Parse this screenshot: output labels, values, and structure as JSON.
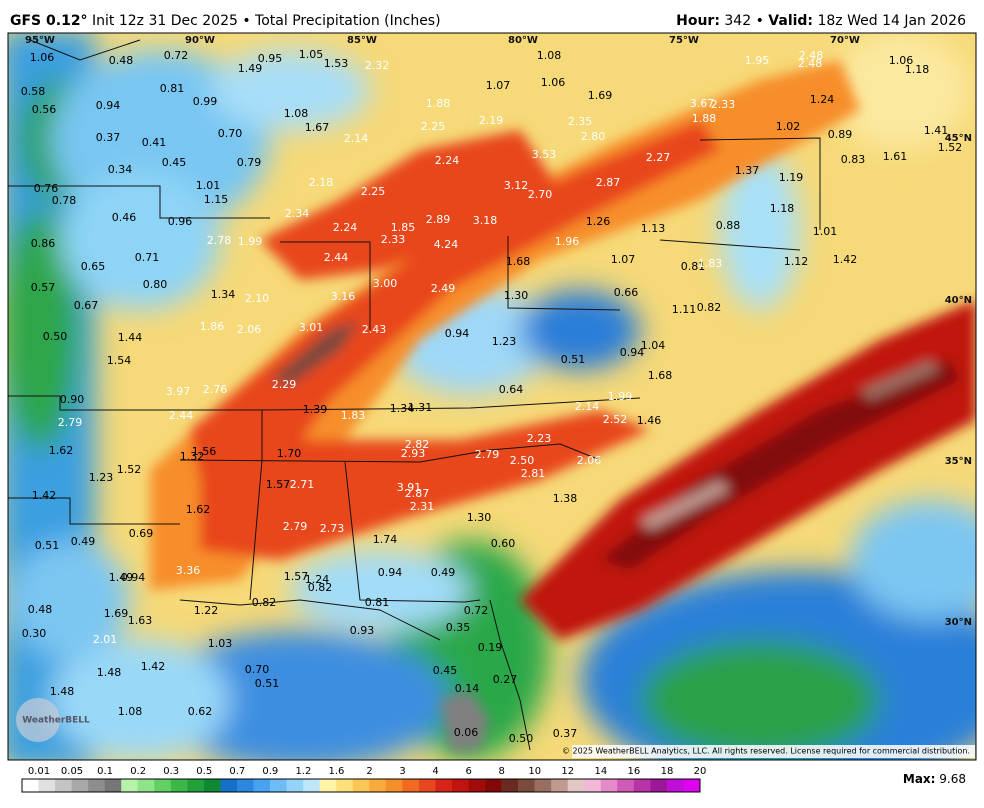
{
  "header": {
    "model": "GFS 0.12°",
    "title": "Init 12z 31 Dec 2025 • Total Precipitation (Inches)",
    "hour_label": "Hour:",
    "hour": "342",
    "separator": "•",
    "valid_label": "Valid:",
    "valid": "18z Wed 14 Jan 2026"
  },
  "map": {
    "longitudes": [
      "95°W",
      "90°W",
      "85°W",
      "80°W",
      "75°W",
      "70°W"
    ],
    "latitudes": [
      "45°N",
      "40°N",
      "35°N",
      "30°N"
    ],
    "station_values": [
      "1.06",
      "0.48",
      "0.72",
      "0.95",
      "1.05",
      "1.53",
      "2.32",
      "1.49",
      "1.08",
      "1.95",
      "2.48",
      "2.48",
      "1.06",
      "1.18",
      "0.58",
      "0.81",
      "0.99",
      "1.07",
      "1.06",
      "1.69",
      "1.24",
      "0.56",
      "0.94",
      "1.88",
      "3.67",
      "2.33",
      "1.88",
      "1.08",
      "2.25",
      "2.19",
      "2.35",
      "1.67",
      "1.02",
      "0.89",
      "1.41",
      "0.37",
      "0.41",
      "0.70",
      "2.14",
      "2.80",
      "1.52",
      "0.45",
      "0.79",
      "2.24",
      "3.53",
      "2.27",
      "0.83",
      "1.61",
      "0.34",
      "1.37",
      "1.19",
      "2.18",
      "1.01",
      "0.76",
      "3.12",
      "2.87",
      "2.25",
      "2.70",
      "1.15",
      "0.78",
      "2.34",
      "1.18",
      "0.46",
      "0.96",
      "2.89",
      "3.18",
      "1.26",
      "1.13",
      "0.88",
      "2.24",
      "1.85",
      "1.01",
      "2.78",
      "1.99",
      "2.33",
      "4.24",
      "1.96",
      "0.86",
      "0.71",
      "2.44",
      "1.68",
      "1.07",
      "0.81",
      "1.83",
      "1.12",
      "1.42",
      "0.65",
      "0.57",
      "0.80",
      "3.00",
      "2.49",
      "1.30",
      "0.66",
      "1.34",
      "2.10",
      "3.16",
      "0.67",
      "1.11",
      "0.82",
      "1.86",
      "2.06",
      "3.01",
      "2.43",
      "0.94",
      "0.50",
      "1.44",
      "1.23",
      "1.04",
      "0.94",
      "1.54",
      "0.51",
      "1.68",
      "2.29",
      "3.97",
      "2.76",
      "0.64",
      "1.99",
      "0.90",
      "1.39",
      "1.83",
      "1.34",
      "1.31",
      "2.14",
      "2.52",
      "1.46",
      "2.44",
      "2.79",
      "2.23",
      "2.82",
      "1.62",
      "1.56",
      "1.32",
      "1.70",
      "2.93",
      "2.79",
      "2.50",
      "2.06",
      "1.52",
      "2.81",
      "1.23",
      "1.57",
      "2.71",
      "3.91",
      "2.87",
      "1.38",
      "1.42",
      "2.31",
      "1.62",
      "1.30",
      "2.79",
      "2.73",
      "0.69",
      "1.74",
      "0.49",
      "0.51",
      "0.60",
      "3.36",
      "1.57",
      "1.24",
      "0.94",
      "0.49",
      "1.49",
      "0.94",
      "0.82",
      "0.48",
      "0.82",
      "0.81",
      "1.69",
      "1.22",
      "0.72",
      "1.63",
      "0.30",
      "0.93",
      "0.35",
      "2.01",
      "1.03",
      "0.19",
      "1.42",
      "0.70",
      "1.48",
      "0.45",
      "0.51",
      "0.27",
      "0.14",
      "1.48",
      "1.08",
      "0.62",
      "0.06",
      "0.50",
      "0.37"
    ],
    "copyright": "© 2025 WeatherBELL Analytics, LLC. All rights reserved. License required for commercial distribution.",
    "logo": "WeatherBELL"
  },
  "colorbar": {
    "labels": [
      "0.01",
      "0.05",
      "0.1",
      "0.2",
      "0.3",
      "0.5",
      "0.7",
      "0.9",
      "1.2",
      "1.6",
      "2",
      "3",
      "4",
      "6",
      "8",
      "10",
      "12",
      "14",
      "16",
      "18",
      "20"
    ],
    "colors": [
      "#ffffff",
      "#e0e0e0",
      "#c4c4c4",
      "#a9a9a9",
      "#8e8e8e",
      "#767676",
      "#b6f2a8",
      "#8ee48a",
      "#62d062",
      "#3cb74a",
      "#22a03a",
      "#0f8a34",
      "#1670c8",
      "#2a88e0",
      "#46a3f0",
      "#6cbcf6",
      "#94d4fa",
      "#bde6fb",
      "#fff3a8",
      "#fde07c",
      "#fbc757",
      "#f9ab3c",
      "#f78e2c",
      "#f26a22",
      "#e8461c",
      "#d82418",
      "#c01410",
      "#a00c0c",
      "#820808",
      "#6a2a20",
      "#7a4a3c",
      "#9a6e62",
      "#c09a90",
      "#e2c8c2",
      "#f2b8d8",
      "#e48ac8",
      "#d05ab8",
      "#b832a8",
      "#9c1898",
      "#c010d8",
      "#e000f0"
    ]
  },
  "footer": {
    "max_label": "Max:",
    "max_value": "9.68"
  }
}
